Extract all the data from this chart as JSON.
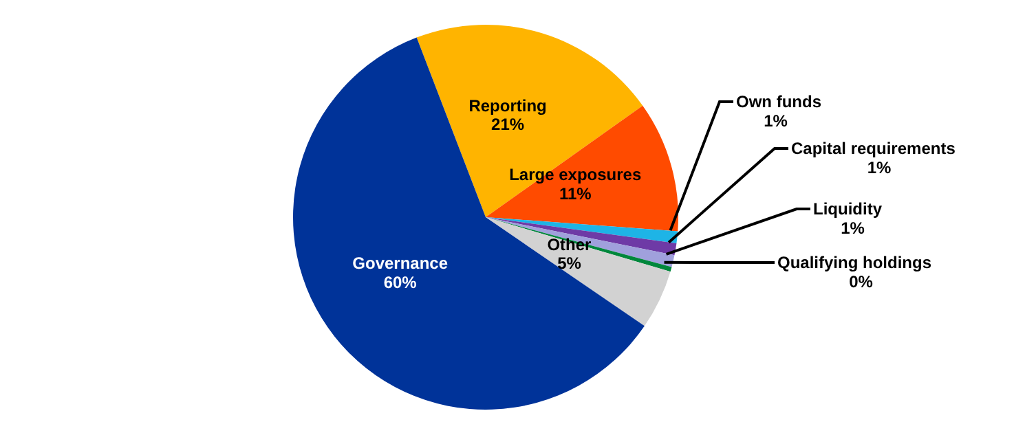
{
  "chart_data": {
    "type": "pie",
    "categories": [
      "Reporting",
      "Large exposures",
      "Own funds",
      "Capital requirements",
      "Liquidity",
      "Qualifying holdings",
      "Other",
      "Governance"
    ],
    "values": [
      21,
      11,
      1,
      1,
      1,
      0.4,
      5,
      59.6
    ],
    "value_labels": [
      "21%",
      "11%",
      "1%",
      "1%",
      "1%",
      "0%",
      "5%",
      "60%"
    ],
    "colors": [
      "#ffb400",
      "#ff4b00",
      "#1eb4e6",
      "#6e3aa6",
      "#a0a0dc",
      "#00873c",
      "#d2d2d2",
      "#003399"
    ]
  }
}
